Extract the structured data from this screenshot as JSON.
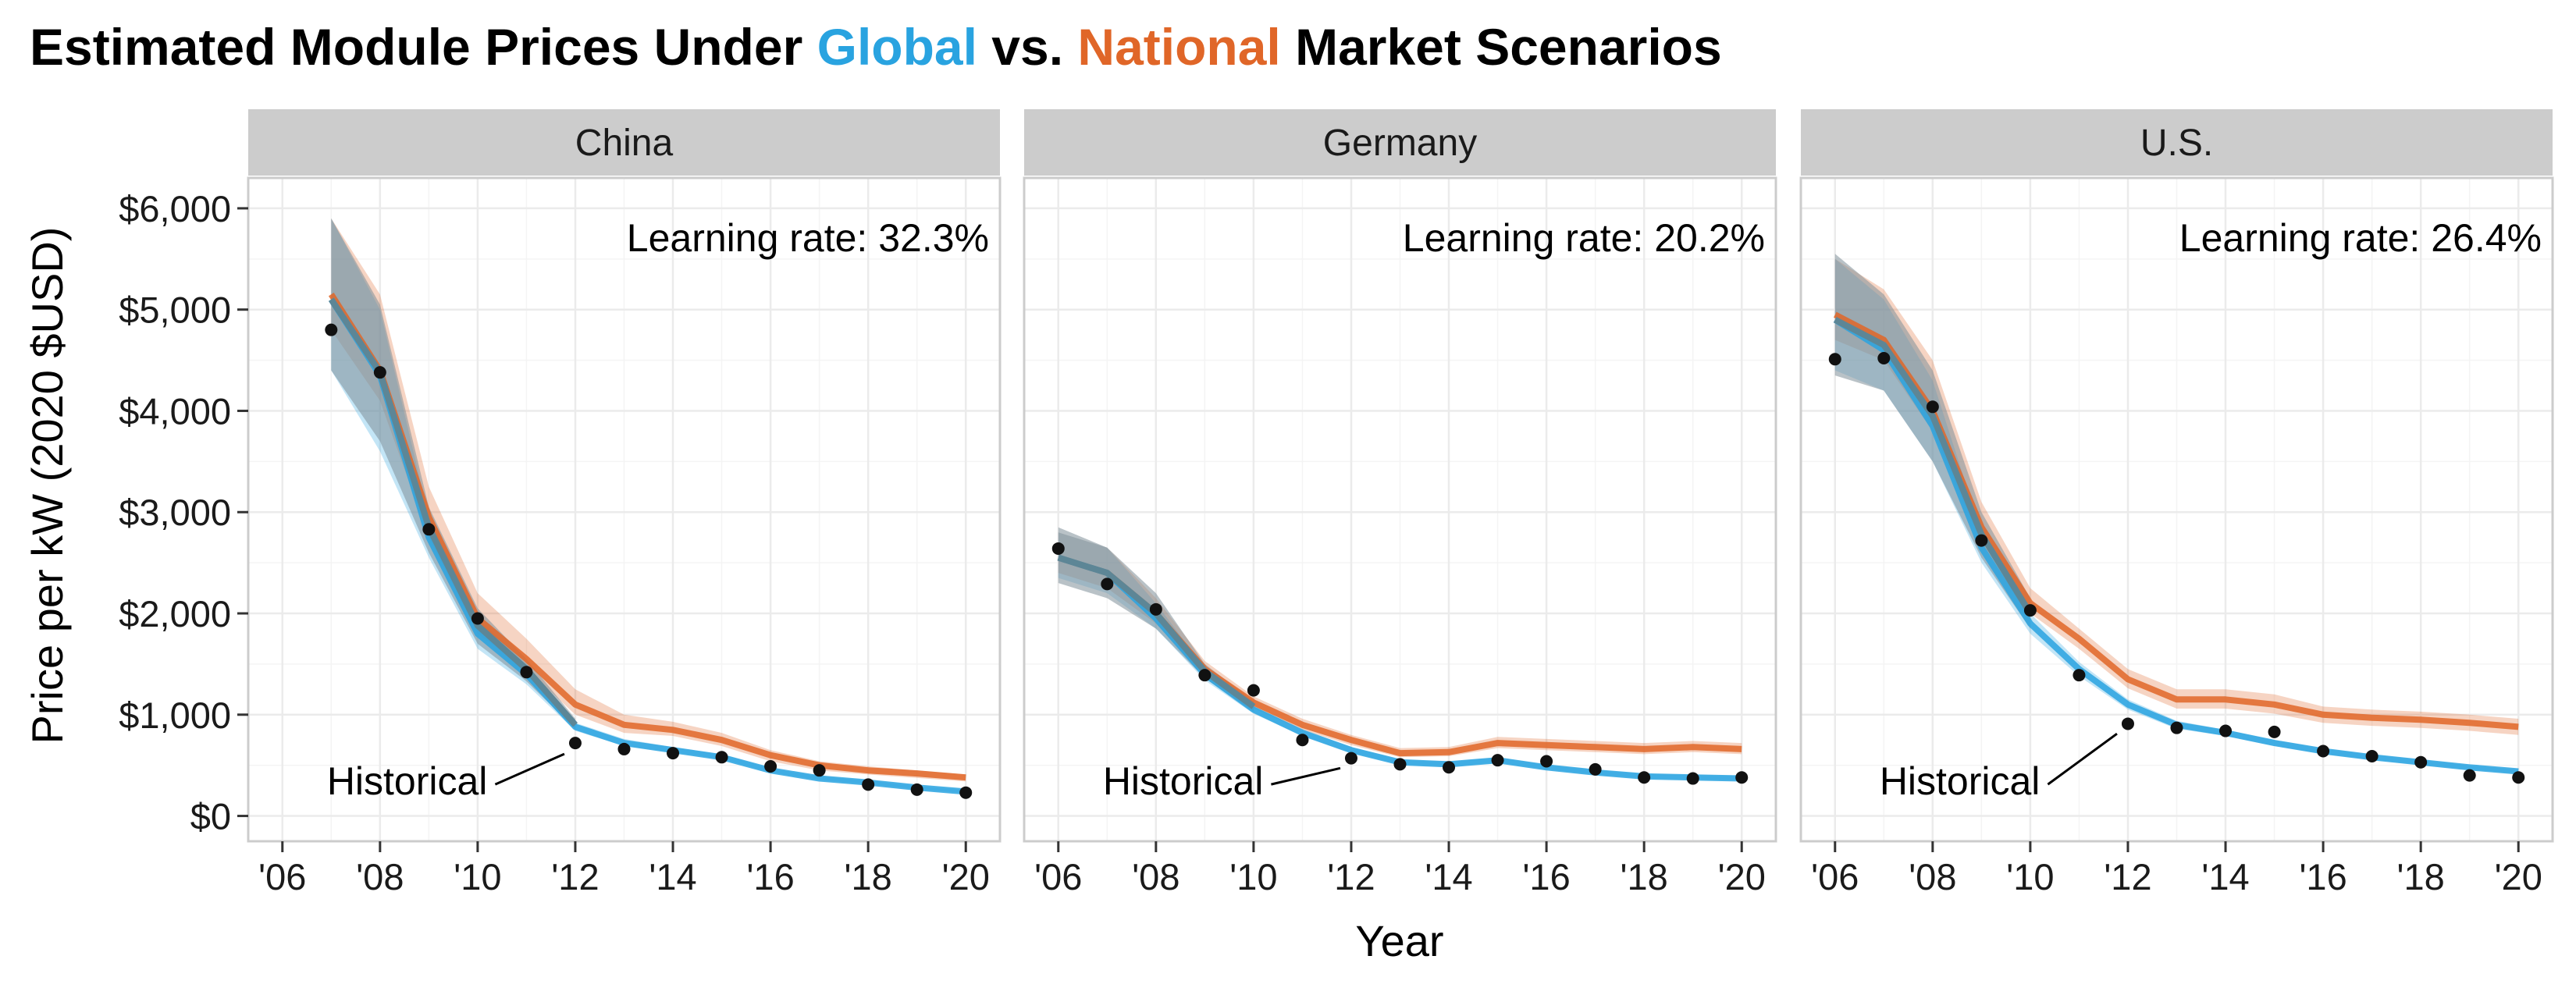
{
  "chart_data": {
    "type": "line",
    "title": {
      "prefix": "Estimated Module Prices Under ",
      "global_word": "Global",
      "middle": " vs. ",
      "national_word": "National",
      "suffix": " Market Scenarios"
    },
    "xlabel": "Year",
    "ylabel": "Price per kW (2020 $USD)",
    "ylim": [
      -250,
      6300
    ],
    "y_ticks": [
      0,
      1000,
      2000,
      3000,
      4000,
      5000,
      6000
    ],
    "y_tick_labels": [
      "$0",
      "$1,000",
      "$2,000",
      "$3,000",
      "$4,000",
      "$5,000",
      "$6,000"
    ],
    "xlim": [
      2005.3,
      2020.7
    ],
    "x_ticks": [
      2006,
      2008,
      2010,
      2012,
      2014,
      2016,
      2018,
      2020
    ],
    "x_tick_labels": [
      "'06",
      "'08",
      "'10",
      "'12",
      "'14",
      "'16",
      "'18",
      "'20"
    ],
    "colors": {
      "global": "#29a3e0",
      "national": "#e06628",
      "historical_line": "#5d8696",
      "overlap_band": "#7f8f99",
      "points": "#111111",
      "strip": "#cccccc",
      "grid": "#ebebeb",
      "border": "#cccccc"
    },
    "series_names": [
      "Global",
      "National",
      "Historical"
    ],
    "panels": [
      {
        "name": "China",
        "learning_rate": "Learning rate: 32.3%",
        "annotation": "Historical",
        "annotation_point": [
          2012,
          720
        ],
        "annotation_text_at": [
          2010.2,
          350
        ],
        "global": {
          "x": [
            2007,
            2008,
            2009,
            2010,
            2011,
            2012,
            2013,
            2014,
            2015,
            2016,
            2017,
            2018,
            2019,
            2020
          ],
          "y": [
            5100,
            4350,
            2750,
            1800,
            1400,
            880,
            720,
            650,
            580,
            450,
            370,
            330,
            280,
            240
          ],
          "lower": [
            4400,
            3600,
            2550,
            1650,
            1300,
            840,
            690,
            630,
            560,
            430,
            355,
            315,
            265,
            225
          ],
          "upper": [
            5900,
            5000,
            2950,
            1950,
            1500,
            920,
            760,
            680,
            610,
            470,
            390,
            350,
            295,
            255
          ]
        },
        "national": {
          "x": [
            2007,
            2008,
            2009,
            2010,
            2011,
            2012,
            2013,
            2014,
            2015,
            2016,
            2017,
            2018,
            2019,
            2020
          ],
          "y": [
            5150,
            4400,
            2950,
            1950,
            1550,
            1100,
            900,
            850,
            750,
            600,
            500,
            450,
            420,
            380
          ],
          "lower": [
            4800,
            4100,
            2750,
            1800,
            1450,
            1000,
            820,
            790,
            690,
            540,
            450,
            410,
            375,
            340
          ],
          "upper": [
            5900,
            5150,
            3250,
            2200,
            1750,
            1250,
            1000,
            930,
            820,
            650,
            540,
            490,
            450,
            410
          ]
        },
        "historical_line": {
          "x": [
            2007,
            2008,
            2009,
            2010,
            2011,
            2012
          ],
          "y": [
            5100,
            4380,
            2850,
            1880,
            1450,
            900
          ],
          "lower": [
            4400,
            3700,
            2600,
            1700,
            1330,
            860
          ],
          "upper": [
            5900,
            5050,
            3050,
            2050,
            1550,
            960
          ]
        },
        "historical_points": {
          "x": [
            2007,
            2008,
            2009,
            2010,
            2011,
            2012,
            2013,
            2014,
            2015,
            2016,
            2017,
            2018,
            2019,
            2020
          ],
          "y": [
            4800,
            4380,
            2830,
            1950,
            1420,
            720,
            660,
            620,
            580,
            490,
            450,
            310,
            260,
            230
          ]
        }
      },
      {
        "name": "Germany",
        "learning_rate": "Learning rate: 20.2%",
        "annotation": "Historical",
        "annotation_point": [
          2012,
          580
        ],
        "annotation_text_at": [
          2010.2,
          350
        ],
        "global": {
          "x": [
            2006,
            2007,
            2008,
            2009,
            2010,
            2011,
            2012,
            2013,
            2014,
            2015,
            2016,
            2017,
            2018,
            2019,
            2020
          ],
          "y": [
            2550,
            2400,
            1950,
            1400,
            1050,
            820,
            650,
            530,
            510,
            550,
            480,
            430,
            390,
            380,
            370
          ],
          "lower": [
            2350,
            2200,
            1850,
            1340,
            1010,
            790,
            625,
            510,
            490,
            525,
            460,
            410,
            370,
            360,
            350
          ],
          "upper": [
            2800,
            2650,
            2100,
            1460,
            1090,
            860,
            680,
            555,
            535,
            580,
            505,
            455,
            415,
            405,
            395
          ]
        },
        "national": {
          "x": [
            2006,
            2007,
            2008,
            2009,
            2010,
            2011,
            2012,
            2013,
            2014,
            2015,
            2016,
            2017,
            2018,
            2019,
            2020
          ],
          "y": [
            2550,
            2400,
            2000,
            1450,
            1120,
            900,
            750,
            620,
            630,
            720,
            700,
            680,
            660,
            680,
            660
          ],
          "lower": [
            2400,
            2250,
            1900,
            1380,
            1060,
            850,
            700,
            580,
            590,
            670,
            650,
            630,
            610,
            630,
            610
          ],
          "upper": [
            2800,
            2650,
            2150,
            1530,
            1180,
            960,
            800,
            670,
            680,
            780,
            760,
            740,
            720,
            740,
            720
          ]
        },
        "historical_line": {
          "x": [
            2006,
            2007,
            2008,
            2009,
            2010
          ],
          "y": [
            2550,
            2400,
            2000,
            1430,
            1080
          ],
          "lower": [
            2300,
            2150,
            1850,
            1360,
            1030
          ],
          "upper": [
            2850,
            2650,
            2200,
            1500,
            1130
          ]
        },
        "historical_points": {
          "x": [
            2006,
            2007,
            2008,
            2009,
            2010,
            2011,
            2012,
            2013,
            2014,
            2015,
            2016,
            2017,
            2018,
            2019,
            2020
          ],
          "y": [
            2640,
            2290,
            2040,
            1390,
            1240,
            750,
            570,
            510,
            480,
            550,
            540,
            460,
            380,
            370,
            380
          ]
        }
      },
      {
        "name": "U.S.",
        "learning_rate": "Learning rate: 26.4%",
        "annotation": "Historical",
        "annotation_point": [
          2012,
          920
        ],
        "annotation_text_at": [
          2010.2,
          350
        ],
        "global": {
          "x": [
            2006,
            2007,
            2008,
            2009,
            2010,
            2011,
            2012,
            2013,
            2014,
            2015,
            2016,
            2017,
            2018,
            2019,
            2020
          ],
          "y": [
            4900,
            4600,
            3850,
            2650,
            1900,
            1450,
            1100,
            900,
            820,
            720,
            640,
            580,
            530,
            480,
            440
          ],
          "lower": [
            4400,
            4200,
            3500,
            2500,
            1800,
            1380,
            1050,
            860,
            790,
            690,
            615,
            555,
            505,
            460,
            420
          ],
          "upper": [
            5500,
            5100,
            4300,
            2800,
            2000,
            1520,
            1150,
            940,
            850,
            750,
            665,
            605,
            555,
            500,
            460
          ]
        },
        "national": {
          "x": [
            2006,
            2007,
            2008,
            2009,
            2010,
            2011,
            2012,
            2013,
            2014,
            2015,
            2016,
            2017,
            2018,
            2019,
            2020
          ],
          "y": [
            4950,
            4700,
            4000,
            2850,
            2100,
            1750,
            1350,
            1150,
            1150,
            1100,
            1000,
            970,
            950,
            920,
            880
          ],
          "lower": [
            4700,
            4500,
            3800,
            2700,
            2000,
            1650,
            1260,
            1060,
            1060,
            1010,
            920,
            890,
            870,
            840,
            800
          ],
          "upper": [
            5500,
            5200,
            4500,
            3100,
            2250,
            1850,
            1450,
            1250,
            1250,
            1200,
            1080,
            1050,
            1030,
            1000,
            960
          ]
        },
        "historical_line": {
          "x": [
            2006,
            2007,
            2008,
            2009,
            2010
          ],
          "y": [
            4900,
            4650,
            3950,
            2780,
            2000
          ],
          "lower": [
            4350,
            4200,
            3500,
            2550,
            1850
          ],
          "upper": [
            5550,
            5150,
            4400,
            3000,
            2150
          ]
        },
        "historical_points": {
          "x": [
            2006,
            2007,
            2008,
            2009,
            2010,
            2011,
            2012,
            2013,
            2014,
            2015,
            2016,
            2017,
            2018,
            2019,
            2020
          ],
          "y": [
            4510,
            4520,
            4040,
            2720,
            2030,
            1390,
            910,
            870,
            840,
            830,
            640,
            590,
            530,
            400,
            380
          ]
        }
      }
    ]
  }
}
